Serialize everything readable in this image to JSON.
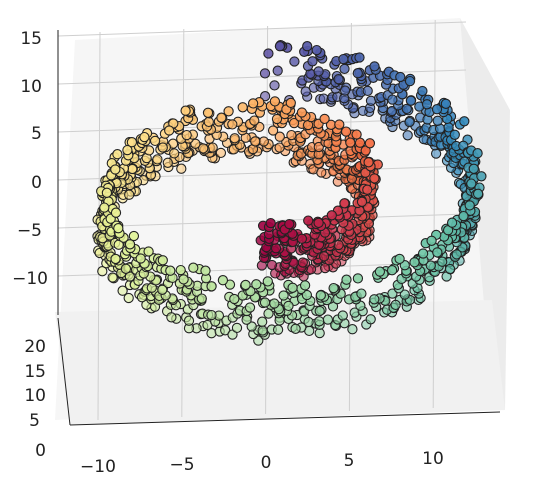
{
  "chart_data": {
    "type": "scatter",
    "projection": "3d",
    "description_shape": "swiss-roll",
    "colormap": [
      "#5e4fa2",
      "#3288bd",
      "#66c2a5",
      "#abdda4",
      "#e6f598",
      "#fee08b",
      "#fdae61",
      "#f46d43",
      "#d53e4f",
      "#9e0142"
    ],
    "z_axis": {
      "ticks": [
        -10,
        -5,
        0,
        5,
        10,
        15
      ],
      "tick_labels": [
        "−10",
        "−5",
        "0",
        "5",
        "10",
        "15"
      ]
    },
    "y_axis": {
      "ticks": [
        0,
        5,
        10,
        15,
        20
      ],
      "tick_labels": [
        "0",
        "5",
        "10",
        "15",
        "20"
      ]
    },
    "x_axis": {
      "ticks": [
        -10,
        -5,
        0,
        5,
        10
      ],
      "tick_labels": [
        "−10",
        "−5",
        "0",
        "5",
        "10"
      ]
    },
    "ranges": {
      "x": [
        -11,
        13.5
      ],
      "y": [
        0,
        21
      ],
      "z": [
        -11.5,
        15.5
      ]
    },
    "roll": {
      "t_min": 4.71,
      "t_max": 14.14,
      "points": 1500,
      "depth_range": [
        0,
        21
      ]
    },
    "grid": true
  }
}
